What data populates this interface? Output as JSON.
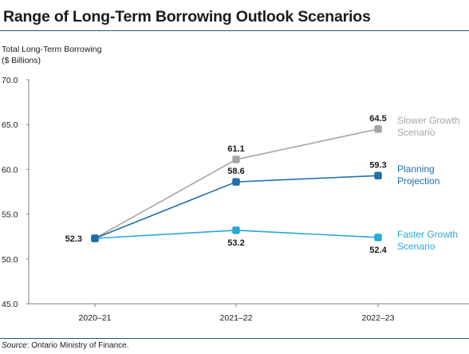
{
  "title": "Range of Long-Term Borrowing Outlook Scenarios",
  "source": {
    "label": "Source",
    "text": ": Ontario Ministry of Finance."
  },
  "chart_data": {
    "type": "line",
    "title": "Range of Long-Term Borrowing Outlook Scenarios",
    "ylabel": [
      "Total Long-Term Borrowing",
      "($ Billions)"
    ],
    "xlabel": "",
    "categories": [
      "2020–21",
      "2021–22",
      "2022–23"
    ],
    "ylim": [
      45.0,
      70.0
    ],
    "yticks": [
      "45.0",
      "50.0",
      "55.0",
      "60.0",
      "65.0",
      "70.0"
    ],
    "grid": false,
    "series": [
      {
        "name": "Slower Growth Scenario",
        "label_lines": [
          "Slower Growth",
          "Scenario"
        ],
        "values": [
          52.3,
          61.1,
          64.5
        ],
        "labels": [
          "",
          "61.1",
          "64.5"
        ],
        "label_pos": [
          "",
          "above",
          "above"
        ],
        "color": "#a6a6a6"
      },
      {
        "name": "Planning Projection",
        "label_lines": [
          "Planning",
          "Projection"
        ],
        "values": [
          52.3,
          58.6,
          59.3
        ],
        "labels": [
          "52.3",
          "58.6",
          "59.3"
        ],
        "label_pos": [
          "left",
          "above",
          "above"
        ],
        "color": "#1f6fa6"
      },
      {
        "name": "Faster Growth Scenario",
        "label_lines": [
          "Faster Growth",
          "Scenario"
        ],
        "values": [
          52.3,
          53.2,
          52.4
        ],
        "labels": [
          "",
          "53.2",
          "52.4"
        ],
        "label_pos": [
          "",
          "below",
          "below"
        ],
        "color": "#29a8d4"
      }
    ]
  }
}
